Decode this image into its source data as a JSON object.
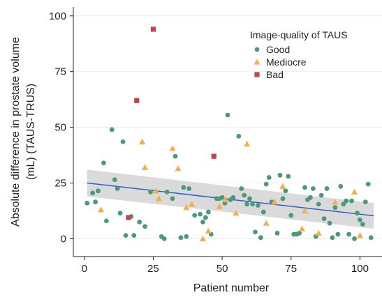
{
  "chart_data": {
    "type": "scatter",
    "xlabel": "Patient number",
    "ylabel_lines": [
      "Absolute difference in prostate volume",
      "(mL) (TAUS-TRUS)"
    ],
    "xlim": [
      -4,
      108
    ],
    "ylim": [
      -8,
      104
    ],
    "xticks": [
      0,
      25,
      50,
      75,
      100
    ],
    "yticks": [
      0,
      25,
      50,
      75,
      100
    ],
    "grid": "horizontal",
    "legend": {
      "title": "Image-quality of TAUS",
      "placement": "top-right",
      "entries": [
        "Good",
        "Mediocre",
        "Bad"
      ]
    },
    "series": [
      {
        "name": "Good",
        "marker": "circle",
        "color": "#4a9a78",
        "points": [
          [
            1,
            16
          ],
          [
            3,
            20.5
          ],
          [
            4,
            16.5
          ],
          [
            5,
            21.5
          ],
          [
            7,
            34
          ],
          [
            8,
            8
          ],
          [
            10,
            49
          ],
          [
            11,
            26.5
          ],
          [
            12,
            22.5
          ],
          [
            13,
            11.5
          ],
          [
            14,
            43.5
          ],
          [
            15,
            1.5
          ],
          [
            17,
            10
          ],
          [
            18,
            1.5
          ],
          [
            20,
            7.5
          ],
          [
            22,
            5.5
          ],
          [
            24,
            21
          ],
          [
            28,
            1
          ],
          [
            29,
            0
          ],
          [
            30,
            21
          ],
          [
            32,
            18
          ],
          [
            33,
            37
          ],
          [
            35,
            0.5
          ],
          [
            36,
            23
          ],
          [
            37,
            1
          ],
          [
            38,
            22.5
          ],
          [
            40,
            10.5
          ],
          [
            42,
            11
          ],
          [
            43,
            7.5
          ],
          [
            44,
            9.5
          ],
          [
            45,
            12
          ],
          [
            46,
            2
          ],
          [
            48,
            18
          ],
          [
            49,
            18
          ],
          [
            50,
            18.5
          ],
          [
            51,
            16
          ],
          [
            52,
            55.5
          ],
          [
            53,
            17.5
          ],
          [
            54,
            18.5
          ],
          [
            56,
            46
          ],
          [
            57,
            22.5
          ],
          [
            58,
            19.5
          ],
          [
            59,
            15.5
          ],
          [
            60,
            18
          ],
          [
            61,
            15.5
          ],
          [
            62,
            3
          ],
          [
            63,
            15
          ],
          [
            64,
            0.5
          ],
          [
            65,
            12
          ],
          [
            66,
            24.5
          ],
          [
            67,
            27.5
          ],
          [
            68,
            16.5
          ],
          [
            70,
            2.5
          ],
          [
            71,
            28.5
          ],
          [
            72,
            18
          ],
          [
            73,
            21.5
          ],
          [
            74,
            28
          ],
          [
            75,
            10.5
          ],
          [
            76,
            2
          ],
          [
            77,
            2
          ],
          [
            78,
            2.5
          ],
          [
            80,
            23
          ],
          [
            81,
            17.5
          ],
          [
            82,
            18.5
          ],
          [
            83,
            22.5
          ],
          [
            84,
            1
          ],
          [
            85,
            15.5
          ],
          [
            86,
            19.5
          ],
          [
            87,
            9
          ],
          [
            88,
            22.5
          ],
          [
            89,
            7
          ],
          [
            90,
            0.5
          ],
          [
            91,
            14
          ],
          [
            92,
            2
          ],
          [
            93,
            23.5
          ],
          [
            94,
            15.5
          ],
          [
            95,
            17
          ],
          [
            96,
            2
          ],
          [
            97,
            17
          ],
          [
            98,
            0
          ],
          [
            99,
            11.5
          ],
          [
            100,
            8.5
          ],
          [
            101,
            6.5
          ],
          [
            102,
            16.5
          ],
          [
            103,
            24.5
          ],
          [
            104,
            0.5
          ]
        ]
      },
      {
        "name": "Mediocre",
        "marker": "triangle",
        "color": "#f2b04c",
        "points": [
          [
            6,
            13
          ],
          [
            21,
            43.5
          ],
          [
            22,
            32
          ],
          [
            26,
            21.5
          ],
          [
            27,
            18
          ],
          [
            32,
            40.5
          ],
          [
            34,
            31.5
          ],
          [
            37,
            14
          ],
          [
            39,
            15.5
          ],
          [
            43,
            0
          ],
          [
            45,
            3.5
          ],
          [
            49,
            14.5
          ],
          [
            51,
            17.5
          ],
          [
            55,
            11.5
          ],
          [
            59,
            42.5
          ],
          [
            66,
            7
          ],
          [
            69,
            16.5
          ],
          [
            72,
            23.5
          ],
          [
            79,
            4.5
          ],
          [
            80,
            12.5
          ],
          [
            85,
            2.5
          ],
          [
            91,
            16.5
          ],
          [
            98,
            21
          ],
          [
            100,
            1.5
          ]
        ]
      },
      {
        "name": "Bad",
        "marker": "square",
        "color": "#c0444e",
        "points": [
          [
            16,
            9.5
          ],
          [
            19,
            62
          ],
          [
            25,
            94
          ],
          [
            47,
            37
          ]
        ]
      }
    ],
    "fit": {
      "label": "linear",
      "color": "#2f5fd1",
      "x": [
        1,
        105
      ],
      "y": [
        25,
        10.3
      ],
      "ci_lower": [
        19,
        4.5
      ],
      "ci_upper": [
        31,
        16
      ],
      "band_color": "#d4d4d4"
    }
  }
}
